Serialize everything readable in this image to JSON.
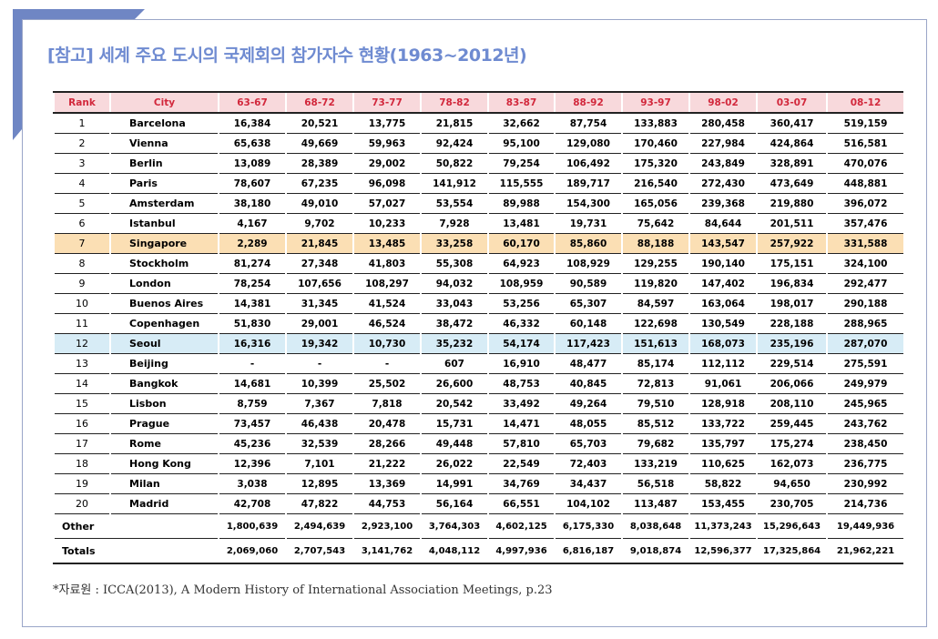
{
  "title": "[참고] 세계 주요 도시의 국제회의 참가자수 현황(1963~2012년)",
  "colors": {
    "accent": "#6f8bd1",
    "header_bg": "#f8d9dc",
    "header_text": "#d2283c",
    "singapore_bg": "#fbdfb4",
    "seoul_bg": "#d7ecf6"
  },
  "table": {
    "headers": [
      "Rank",
      "City",
      "63-67",
      "68-72",
      "73-77",
      "78-82",
      "83-87",
      "88-92",
      "93-97",
      "98-02",
      "03-07",
      "08-12"
    ],
    "rows": [
      {
        "rank": "1",
        "city": "Barcelona",
        "values": [
          "16,384",
          "20,521",
          "13,775",
          "21,815",
          "32,662",
          "87,754",
          "133,883",
          "280,458",
          "360,417",
          "519,159"
        ]
      },
      {
        "rank": "2",
        "city": "Vienna",
        "values": [
          "65,638",
          "49,669",
          "59,963",
          "92,424",
          "95,100",
          "129,080",
          "170,460",
          "227,984",
          "424,864",
          "516,581"
        ]
      },
      {
        "rank": "3",
        "city": "Berlin",
        "values": [
          "13,089",
          "28,389",
          "29,002",
          "50,822",
          "79,254",
          "106,492",
          "175,320",
          "243,849",
          "328,891",
          "470,076"
        ]
      },
      {
        "rank": "4",
        "city": "Paris",
        "values": [
          "78,607",
          "67,235",
          "96,098",
          "141,912",
          "115,555",
          "189,717",
          "216,540",
          "272,430",
          "473,649",
          "448,881"
        ]
      },
      {
        "rank": "5",
        "city": "Amsterdam",
        "values": [
          "38,180",
          "49,010",
          "57,027",
          "53,554",
          "89,988",
          "154,300",
          "165,056",
          "239,368",
          "219,880",
          "396,072"
        ]
      },
      {
        "rank": "6",
        "city": "Istanbul",
        "values": [
          "4,167",
          "9,702",
          "10,233",
          "7,928",
          "13,481",
          "19,731",
          "75,642",
          "84,644",
          "201,511",
          "357,476"
        ]
      },
      {
        "rank": "7",
        "city": "Singapore",
        "values": [
          "2,289",
          "21,845",
          "13,485",
          "33,258",
          "60,170",
          "85,860",
          "88,188",
          "143,547",
          "257,922",
          "331,588"
        ]
      },
      {
        "rank": "8",
        "city": "Stockholm",
        "values": [
          "81,274",
          "27,348",
          "41,803",
          "55,308",
          "64,923",
          "108,929",
          "129,255",
          "190,140",
          "175,151",
          "324,100"
        ]
      },
      {
        "rank": "9",
        "city": "London",
        "values": [
          "78,254",
          "107,656",
          "108,297",
          "94,032",
          "108,959",
          "90,589",
          "119,820",
          "147,402",
          "196,834",
          "292,477"
        ]
      },
      {
        "rank": "10",
        "city": "Buenos Aires",
        "values": [
          "14,381",
          "31,345",
          "41,524",
          "33,043",
          "53,256",
          "65,307",
          "84,597",
          "163,064",
          "198,017",
          "290,188"
        ]
      },
      {
        "rank": "11",
        "city": "Copenhagen",
        "values": [
          "51,830",
          "29,001",
          "46,524",
          "38,472",
          "46,332",
          "60,148",
          "122,698",
          "130,549",
          "228,188",
          "288,965"
        ]
      },
      {
        "rank": "12",
        "city": "Seoul",
        "values": [
          "16,316",
          "19,342",
          "10,730",
          "35,232",
          "54,174",
          "117,423",
          "151,613",
          "168,073",
          "235,196",
          "287,070"
        ]
      },
      {
        "rank": "13",
        "city": "Beijing",
        "values": [
          "-",
          "-",
          "-",
          "607",
          "16,910",
          "48,477",
          "85,174",
          "112,112",
          "229,514",
          "275,591"
        ]
      },
      {
        "rank": "14",
        "city": "Bangkok",
        "values": [
          "14,681",
          "10,399",
          "25,502",
          "26,600",
          "48,753",
          "40,845",
          "72,813",
          "91,061",
          "206,066",
          "249,979"
        ]
      },
      {
        "rank": "15",
        "city": "Lisbon",
        "values": [
          "8,759",
          "7,367",
          "7,818",
          "20,542",
          "33,492",
          "49,264",
          "79,510",
          "128,918",
          "208,110",
          "245,965"
        ]
      },
      {
        "rank": "16",
        "city": "Prague",
        "values": [
          "73,457",
          "46,438",
          "20,478",
          "15,731",
          "14,471",
          "48,055",
          "85,512",
          "133,722",
          "259,445",
          "243,762"
        ]
      },
      {
        "rank": "17",
        "city": "Rome",
        "values": [
          "45,236",
          "32,539",
          "28,266",
          "49,448",
          "57,810",
          "65,703",
          "79,682",
          "135,797",
          "175,274",
          "238,450"
        ]
      },
      {
        "rank": "18",
        "city": "Hong Kong",
        "values": [
          "12,396",
          "7,101",
          "21,222",
          "26,022",
          "22,549",
          "72,403",
          "133,219",
          "110,625",
          "162,073",
          "236,775"
        ]
      },
      {
        "rank": "19",
        "city": "Milan",
        "values": [
          "3,038",
          "12,895",
          "13,369",
          "14,991",
          "34,769",
          "34,437",
          "56,518",
          "58,822",
          "94,650",
          "230,992"
        ]
      },
      {
        "rank": "20",
        "city": "Madrid",
        "values": [
          "42,708",
          "47,822",
          "44,753",
          "56,164",
          "66,551",
          "104,102",
          "113,487",
          "153,455",
          "230,705",
          "214,736"
        ]
      }
    ],
    "other": {
      "label": "Other",
      "values": [
        "1,800,639",
        "2,494,639",
        "2,923,100",
        "3,764,303",
        "4,602,125",
        "6,175,330",
        "8,038,648",
        "11,373,243",
        "15,296,643",
        "19,449,936"
      ]
    },
    "totals": {
      "label": "Totals",
      "values": [
        "2,069,060",
        "2,707,543",
        "3,141,762",
        "4,048,112",
        "4,997,936",
        "6,816,187",
        "9,018,874",
        "12,596,377",
        "17,325,864",
        "21,962,221"
      ]
    }
  },
  "source": "*자료원 : ICCA(2013), A Modern History of International Association Meetings, p.23"
}
